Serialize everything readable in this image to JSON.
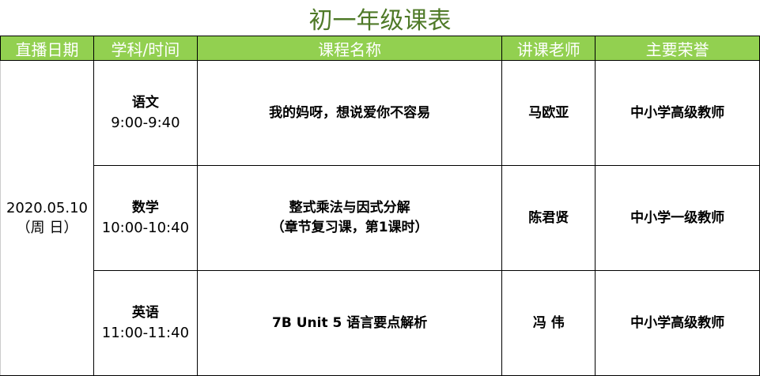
{
  "title": "初一年级课表",
  "colors": {
    "header_bg": "#92d050",
    "title": "#4f7a28"
  },
  "headers": [
    "直播日期",
    "学科/时间",
    "课程名称",
    "讲课老师",
    "主要荣誉"
  ],
  "date": {
    "line1": "2020.05.10",
    "line2": "（周 日）"
  },
  "rows": [
    {
      "subject": "语文",
      "time": "9:00-9:40",
      "course": [
        "我的妈呀，想说爱你不容易"
      ],
      "teacher": "马欧亚",
      "honor": "中小学高级教师"
    },
    {
      "subject": "数学",
      "time": "10:00-10:40",
      "course": [
        "整式乘法与因式分解",
        "（章节复习课，第1课时）"
      ],
      "teacher": "陈君贤",
      "honor": "中小学一级教师"
    },
    {
      "subject": "英语",
      "time": "11:00-11:40",
      "course": [
        "7B Unit 5 语言要点解析"
      ],
      "teacher": "冯 伟",
      "honor": "中小学高级教师"
    }
  ]
}
